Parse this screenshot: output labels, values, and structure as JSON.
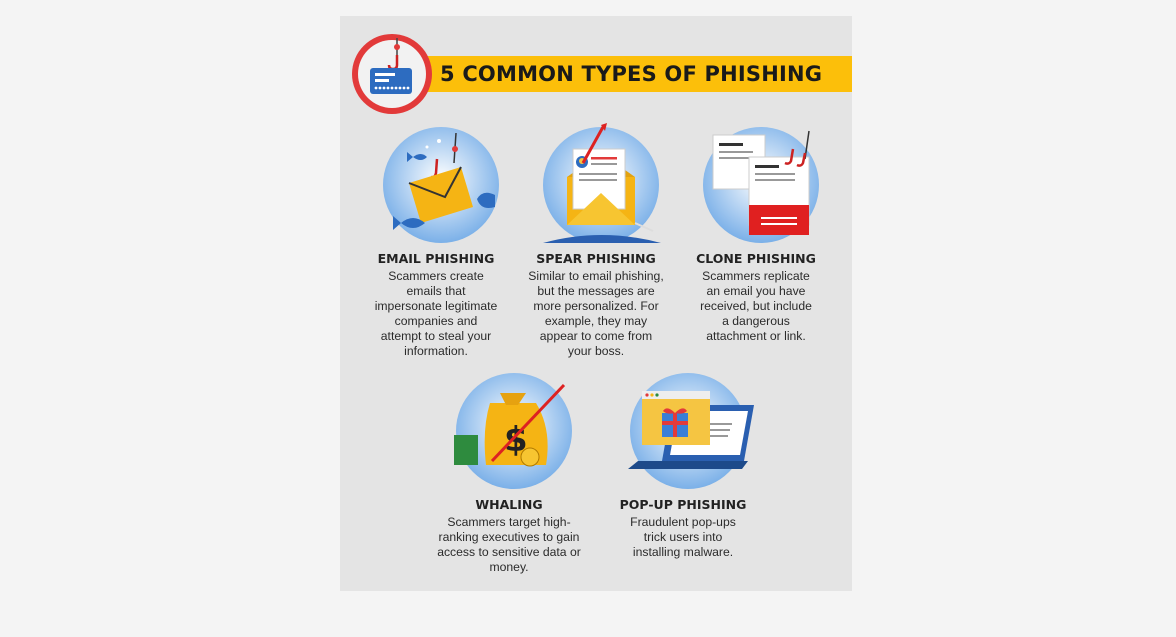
{
  "header": {
    "title": "5 COMMON TYPES OF PHISHING",
    "badge_icon": "phishing-hook-card-icon"
  },
  "colors": {
    "accent_yellow": "#fcbf0a",
    "badge_red": "#e23a3a",
    "circle_blue": "#8fc0ee",
    "card_gray": "#e4e4e4"
  },
  "types": [
    {
      "title": "EMAIL PHISHING",
      "description": "Scammers create emails that impersonate legitimate companies and attempt to steal your information.",
      "icon": "envelope-fish-hook-icon"
    },
    {
      "title": "SPEAR PHISHING",
      "description": "Similar to email phishing, but the messages are more personalized. For example, they may appear to come from your boss.",
      "icon": "envelope-spear-icon"
    },
    {
      "title": "CLONE PHISHING",
      "description": "Scammers replicate an email you have received, but include a dangerous attachment or link.",
      "icon": "cloned-documents-icon"
    },
    {
      "title": "WHALING",
      "description": "Scammers target high-ranking executives to gain access to sensitive data or money.",
      "icon": "money-bag-hook-icon"
    },
    {
      "title": "POP-UP PHISHING",
      "description": "Fraudulent pop-ups trick users into installing malware.",
      "icon": "laptop-popup-icon"
    }
  ]
}
